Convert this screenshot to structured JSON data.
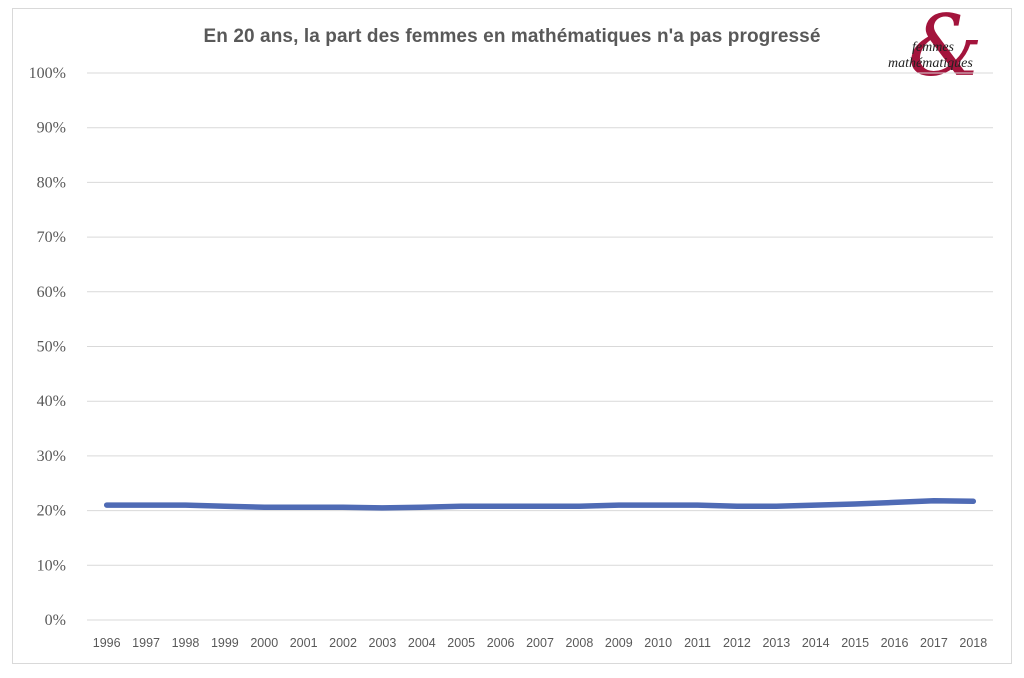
{
  "chart_data": {
    "type": "line",
    "title": "En 20 ans, la part des femmes en mathématiques n'a pas progressé",
    "xlabel": "",
    "ylabel": "",
    "categories": [
      "1996",
      "1997",
      "1998",
      "1999",
      "2000",
      "2001",
      "2002",
      "2003",
      "2004",
      "2005",
      "2006",
      "2007",
      "2008",
      "2009",
      "2010",
      "2011",
      "2012",
      "2013",
      "2014",
      "2015",
      "2016",
      "2017",
      "2018"
    ],
    "series": [
      {
        "values": [
          0.21,
          0.21,
          0.21,
          0.208,
          0.206,
          0.206,
          0.206,
          0.205,
          0.206,
          0.208,
          0.208,
          0.208,
          0.208,
          0.21,
          0.21,
          0.21,
          0.208,
          0.208,
          0.21,
          0.212,
          0.215,
          0.218,
          0.217
        ],
        "color": "#4f6bb5"
      }
    ],
    "ylim": [
      0,
      1
    ],
    "yticks": [
      "0%",
      "10%",
      "20%",
      "30%",
      "40%",
      "50%",
      "60%",
      "70%",
      "80%",
      "90%",
      "100%"
    ],
    "grid": true,
    "legend": "none"
  },
  "logo": {
    "line1": "femmes",
    "line2": "mathématiques",
    "color": "#a3143c"
  },
  "colors": {
    "grid": "#d9d9d9",
    "text": "#595959"
  }
}
